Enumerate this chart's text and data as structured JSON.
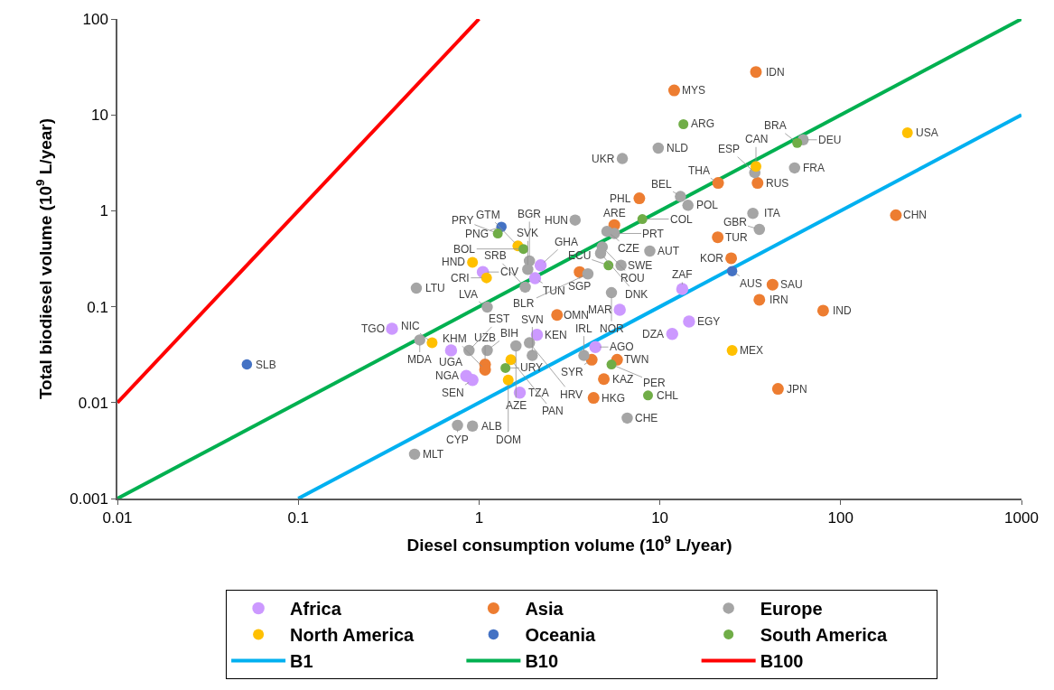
{
  "chart_data": {
    "type": "scatter",
    "xlabel": "Diesel consumption volume (10$^{9}$ L/year)",
    "ylabel": "Total biodiesel volume (10$^{9}$ L/year)",
    "log": "xy",
    "xlim": [
      0.01,
      1000
    ],
    "ylim": [
      0.001,
      100
    ],
    "xticks": [
      0.01,
      0.1,
      1,
      10,
      100,
      1000
    ],
    "yticks": [
      0.001,
      0.01,
      0.1,
      1,
      10,
      100
    ],
    "legend": "bottom",
    "series": [
      {
        "name": "Africa",
        "marker": "circle",
        "color": "#cc99ff",
        "x": [
          0.33,
          1.05,
          2.04,
          2.19,
          2.09,
          4.4,
          6.0,
          13.3,
          14.5,
          11.7,
          1.68,
          0.85,
          0.92,
          0.7
        ],
        "values": [
          0.059,
          0.23,
          0.198,
          0.27,
          0.051,
          0.038,
          0.093,
          0.153,
          0.07,
          0.052,
          0.0127,
          0.019,
          0.0172,
          0.035
        ]
      },
      {
        "name": "Asia",
        "marker": "circle",
        "color": "#ed7d31",
        "x": [
          34,
          12,
          21,
          34.7,
          7.7,
          20.9,
          24.8,
          42,
          35.5,
          80,
          202,
          5.6,
          3.6,
          2.7,
          4.2,
          5.8,
          4.9,
          4.3,
          45,
          1.08,
          1.08
        ],
        "values": [
          28,
          18,
          1.95,
          1.95,
          1.35,
          0.53,
          0.32,
          0.17,
          0.118,
          0.091,
          0.9,
          0.71,
          0.23,
          0.082,
          0.028,
          0.028,
          0.0176,
          0.0112,
          0.0139,
          0.025,
          0.022
        ]
      },
      {
        "name": "Europe",
        "marker": "circle",
        "color": "#a5a5a5",
        "x": [
          9.8,
          6.2,
          62,
          33.5,
          55.6,
          13,
          14.3,
          32.7,
          35.5,
          3.4,
          5.1,
          5.6,
          4.8,
          4.7,
          8.8,
          6.1,
          4.0,
          5.4,
          0.45,
          1.11,
          1.8,
          1.86,
          1.9,
          0.47,
          0.88,
          1.11,
          1.6,
          1.9,
          1.97,
          3.8,
          6.6,
          0.76,
          0.92,
          0.44
        ],
        "values": [
          4.5,
          3.5,
          5.5,
          2.5,
          2.8,
          1.41,
          1.14,
          0.94,
          0.64,
          0.8,
          0.61,
          0.58,
          0.42,
          0.36,
          0.38,
          0.27,
          0.22,
          0.14,
          0.156,
          0.099,
          0.16,
          0.245,
          0.3,
          0.045,
          0.035,
          0.035,
          0.039,
          0.042,
          0.031,
          0.031,
          0.0069,
          0.0058,
          0.0057,
          0.0029
        ]
      },
      {
        "name": "North America",
        "marker": "circle",
        "color": "#ffc000",
        "x": [
          234,
          34,
          25.1,
          0.92,
          1.1,
          1.64,
          0.55,
          1.5,
          1.45
        ],
        "values": [
          6.5,
          2.9,
          0.035,
          0.29,
          0.2,
          0.43,
          0.042,
          0.028,
          0.0172
        ]
      },
      {
        "name": "Oceania",
        "marker": "circle",
        "color": "#4472c4",
        "x": [
          25.1,
          1.33,
          0.052
        ],
        "values": [
          0.235,
          0.68,
          0.025
        ]
      },
      {
        "name": "South America",
        "marker": "circle",
        "color": "#70ad47",
        "x": [
          13.5,
          57.5,
          8.0,
          5.2,
          1.76,
          1.27,
          5.4,
          8.6,
          1.4
        ],
        "values": [
          8,
          5.1,
          0.82,
          0.27,
          0.4,
          0.58,
          0.025,
          0.0119,
          0.023
        ]
      },
      {
        "name": "B1",
        "type": "line",
        "color": "#00b0f0",
        "x": [
          0.1,
          1000
        ],
        "values": [
          0.001,
          10
        ]
      },
      {
        "name": "B10",
        "type": "line",
        "color": "#00b050",
        "x": [
          0.01,
          1000
        ],
        "values": [
          0.001,
          100
        ]
      },
      {
        "name": "B100",
        "type": "line",
        "color": "#ff0000",
        "x": [
          0.01,
          1
        ],
        "values": [
          0.01,
          100
        ]
      }
    ],
    "annotations": [
      {
        "text": "TGO",
        "x": 0.33,
        "y": 0.059
      },
      {
        "text": "CIV",
        "x": 1.05,
        "y": 0.23
      },
      {
        "text": "TUN",
        "x": 2.04,
        "y": 0.198
      },
      {
        "text": "GHA",
        "x": 2.19,
        "y": 0.27
      },
      {
        "text": "KEN",
        "x": 2.09,
        "y": 0.051
      },
      {
        "text": "AGO",
        "x": 4.4,
        "y": 0.038
      },
      {
        "text": "MAR",
        "x": 6.0,
        "y": 0.093
      },
      {
        "text": "ZAF",
        "x": 13.3,
        "y": 0.153
      },
      {
        "text": "EGY",
        "x": 14.5,
        "y": 0.07
      },
      {
        "text": "DZA",
        "x": 11.7,
        "y": 0.052
      },
      {
        "text": "TZA",
        "x": 1.68,
        "y": 0.0127
      },
      {
        "text": "NGA",
        "x": 0.85,
        "y": 0.019
      },
      {
        "text": "SEN",
        "x": 0.92,
        "y": 0.0172
      },
      {
        "text": "UGA",
        "x": 0.7,
        "y": 0.035
      },
      {
        "text": "IDN",
        "x": 34,
        "y": 28
      },
      {
        "text": "MYS",
        "x": 12,
        "y": 18
      },
      {
        "text": "THA",
        "x": 21,
        "y": 1.95
      },
      {
        "text": "RUS",
        "x": 34.7,
        "y": 1.95
      },
      {
        "text": "PHL",
        "x": 7.7,
        "y": 1.35
      },
      {
        "text": "TUR",
        "x": 20.9,
        "y": 0.53
      },
      {
        "text": "KOR",
        "x": 24.8,
        "y": 0.32
      },
      {
        "text": "SAU",
        "x": 42,
        "y": 0.17
      },
      {
        "text": "IRN",
        "x": 35.5,
        "y": 0.118
      },
      {
        "text": "IND",
        "x": 80,
        "y": 0.091
      },
      {
        "text": "CHN",
        "x": 202,
        "y": 0.9
      },
      {
        "text": "ARE",
        "x": 5.6,
        "y": 0.71
      },
      {
        "text": "SGP",
        "x": 3.6,
        "y": 0.23
      },
      {
        "text": "OMN",
        "x": 2.7,
        "y": 0.082
      },
      {
        "text": "SYR",
        "x": 4.2,
        "y": 0.028
      },
      {
        "text": "TWN",
        "x": 5.8,
        "y": 0.028
      },
      {
        "text": "KAZ",
        "x": 4.9,
        "y": 0.0176
      },
      {
        "text": "HKG",
        "x": 4.3,
        "y": 0.0112
      },
      {
        "text": "JPN",
        "x": 45,
        "y": 0.0139
      },
      {
        "text": "UZB",
        "x": 1.08,
        "y": 0.025
      },
      {
        "text": "KHM",
        "x": 1.08,
        "y": 0.022
      },
      {
        "text": "NLD",
        "x": 9.8,
        "y": 4.5
      },
      {
        "text": "UKR",
        "x": 6.2,
        "y": 3.5
      },
      {
        "text": "DEU",
        "x": 62,
        "y": 5.5
      },
      {
        "text": "ESP",
        "x": 33.5,
        "y": 2.5
      },
      {
        "text": "FRA",
        "x": 55.6,
        "y": 2.8
      },
      {
        "text": "BEL",
        "x": 13,
        "y": 1.41
      },
      {
        "text": "POL",
        "x": 14.3,
        "y": 1.14
      },
      {
        "text": "ITA",
        "x": 32.7,
        "y": 0.94
      },
      {
        "text": "GBR",
        "x": 35.5,
        "y": 0.64
      },
      {
        "text": "HUN",
        "x": 3.4,
        "y": 0.8
      },
      {
        "text": "CZE",
        "x": 5.1,
        "y": 0.61
      },
      {
        "text": "PRT",
        "x": 5.6,
        "y": 0.58
      },
      {
        "text": "ROU",
        "x": 4.8,
        "y": 0.42
      },
      {
        "text": "DNK",
        "x": 4.7,
        "y": 0.36
      },
      {
        "text": "AUT",
        "x": 8.8,
        "y": 0.38
      },
      {
        "text": "SWE",
        "x": 6.1,
        "y": 0.27
      },
      {
        "text": "BLR",
        "x": 4.0,
        "y": 0.22
      },
      {
        "text": "NOR",
        "x": 5.4,
        "y": 0.14
      },
      {
        "text": "LTU",
        "x": 0.45,
        "y": 0.156
      },
      {
        "text": "LVA",
        "x": 1.11,
        "y": 0.099
      },
      {
        "text": "SRB",
        "x": 1.8,
        "y": 0.16
      },
      {
        "text": "SVK",
        "x": 1.86,
        "y": 0.245
      },
      {
        "text": "BGR",
        "x": 1.9,
        "y": 0.3
      },
      {
        "text": "MDA",
        "x": 0.47,
        "y": 0.045
      },
      {
        "text": "EST",
        "x": 0.88,
        "y": 0.035
      },
      {
        "text": "BIH",
        "x": 1.11,
        "y": 0.035
      },
      {
        "text": "AZE",
        "x": 1.6,
        "y": 0.039
      },
      {
        "text": "HRV",
        "x": 1.9,
        "y": 0.042
      },
      {
        "text": "SVN",
        "x": 1.97,
        "y": 0.031
      },
      {
        "text": "IRL",
        "x": 3.8,
        "y": 0.031
      },
      {
        "text": "CHE",
        "x": 6.6,
        "y": 0.0069
      },
      {
        "text": "CYP",
        "x": 0.76,
        "y": 0.0058
      },
      {
        "text": "ALB",
        "x": 0.92,
        "y": 0.0057
      },
      {
        "text": "MLT",
        "x": 0.44,
        "y": 0.0029
      },
      {
        "text": "USA",
        "x": 234,
        "y": 6.5
      },
      {
        "text": "CAN",
        "x": 34,
        "y": 2.9
      },
      {
        "text": "MEX",
        "x": 25.1,
        "y": 0.035
      },
      {
        "text": "HND",
        "x": 0.92,
        "y": 0.29
      },
      {
        "text": "CRI",
        "x": 1.1,
        "y": 0.2
      },
      {
        "text": "GTM",
        "x": 1.64,
        "y": 0.43
      },
      {
        "text": "NIC",
        "x": 0.55,
        "y": 0.042
      },
      {
        "text": "PAN",
        "x": 1.5,
        "y": 0.028
      },
      {
        "text": "DOM",
        "x": 1.45,
        "y": 0.0172
      },
      {
        "text": "AUS",
        "x": 25.1,
        "y": 0.235
      },
      {
        "text": "PNG",
        "x": 1.33,
        "y": 0.68
      },
      {
        "text": "SLB",
        "x": 0.052,
        "y": 0.025
      },
      {
        "text": "ARG",
        "x": 13.5,
        "y": 8
      },
      {
        "text": "BRA",
        "x": 57.5,
        "y": 5.1
      },
      {
        "text": "COL",
        "x": 8.0,
        "y": 0.82
      },
      {
        "text": "ECU",
        "x": 5.2,
        "y": 0.27
      },
      {
        "text": "BOL",
        "x": 1.76,
        "y": 0.4
      },
      {
        "text": "PRY",
        "x": 1.27,
        "y": 0.58
      },
      {
        "text": "PER",
        "x": 5.4,
        "y": 0.025
      },
      {
        "text": "CHL",
        "x": 8.6,
        "y": 0.0119
      },
      {
        "text": "URY",
        "x": 1.4,
        "y": 0.023
      }
    ]
  }
}
